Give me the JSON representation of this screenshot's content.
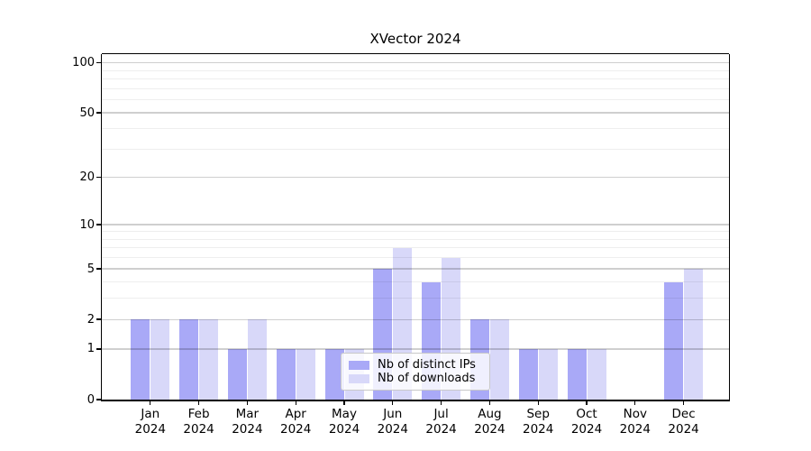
{
  "chart_data": {
    "type": "bar",
    "title": "XVector 2024",
    "categories": [
      "Jan",
      "Feb",
      "Mar",
      "Apr",
      "May",
      "Jun",
      "Jul",
      "Aug",
      "Sep",
      "Oct",
      "Nov",
      "Dec"
    ],
    "year_label": "2024",
    "series": [
      {
        "name": "Nb of distinct IPs",
        "color": "#a9a9f7",
        "values": [
          2,
          2,
          1,
          1,
          1,
          5,
          4,
          2,
          1,
          1,
          0,
          4
        ]
      },
      {
        "name": "Nb of downloads",
        "color": "#d8d8f9",
        "values": [
          2,
          2,
          2,
          1,
          1,
          7,
          6,
          2,
          1,
          1,
          0,
          5
        ]
      }
    ],
    "y_scale": "log10(1+v)",
    "y_axis_ticks": [
      0,
      1,
      2,
      5,
      10,
      20,
      50,
      100
    ],
    "y_minor_gridlines": [
      3,
      4,
      6,
      7,
      8,
      9,
      30,
      40,
      60,
      70,
      80,
      90
    ],
    "y_max": 113,
    "xlabel": "",
    "ylabel": "",
    "grid": true,
    "legend_position": "lower-center"
  },
  "colors": {
    "axis": "#000000",
    "major_grid": "rgba(0,0,0,0.19)",
    "minor_grid": "rgba(0,0,0,0.065)",
    "background": "#ffffff"
  }
}
